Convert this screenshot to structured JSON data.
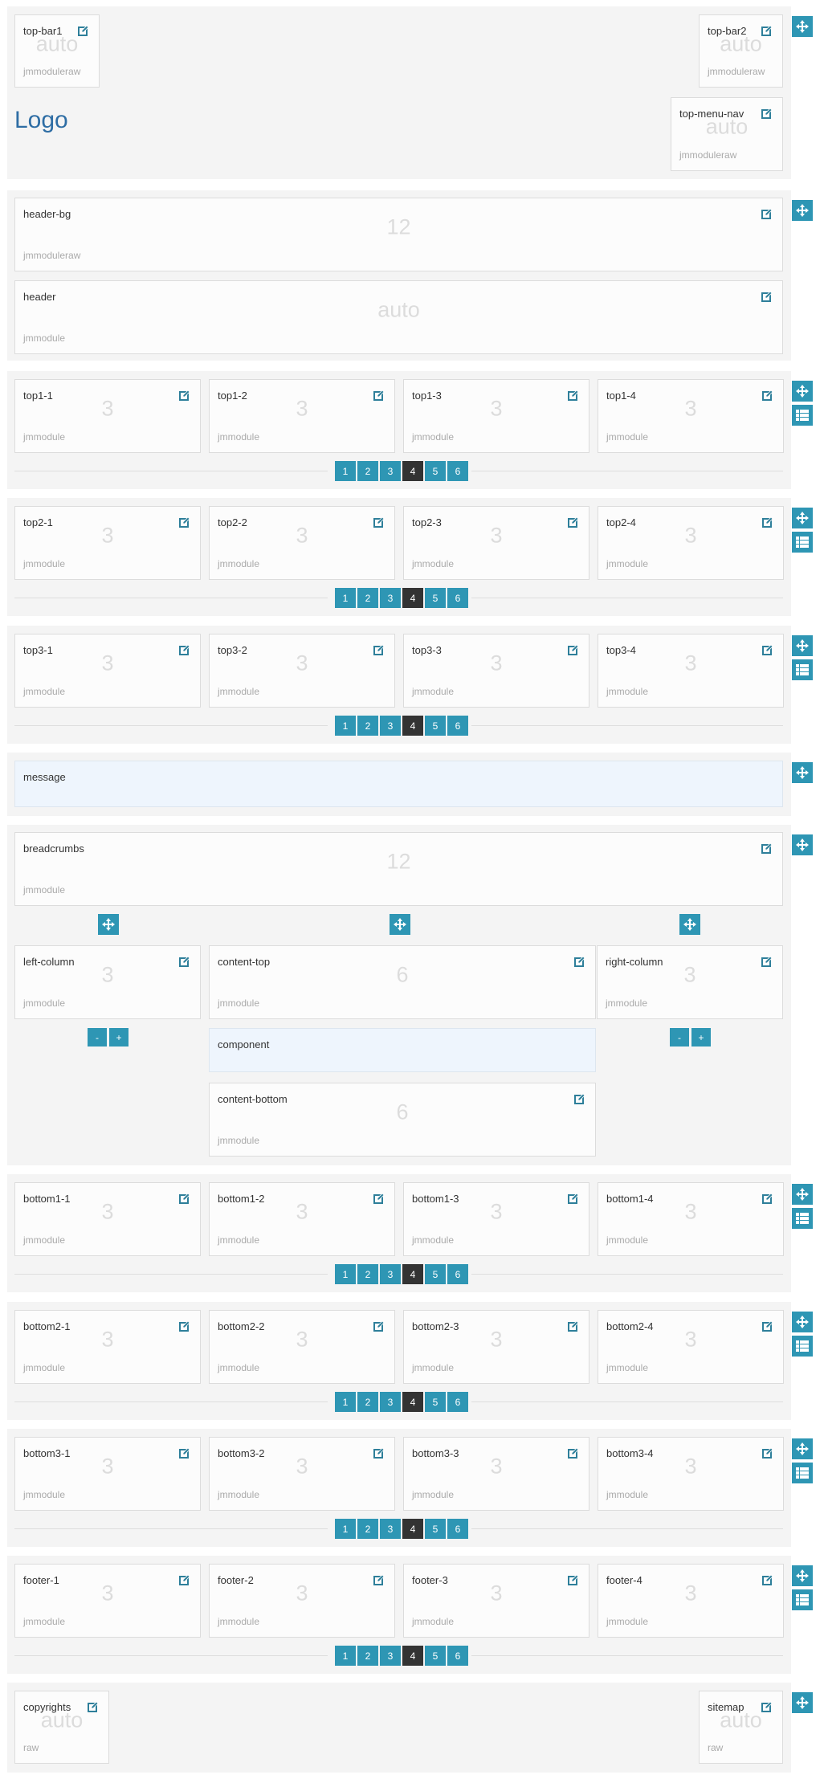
{
  "colors": {
    "accent": "#2e96b4",
    "active": "#333333",
    "section_bg": "#f4f4f4",
    "component_bg": "#eef5fd"
  },
  "logo": "Logo",
  "column_options": [
    "1",
    "2",
    "3",
    "4",
    "5",
    "6"
  ],
  "active_columns": "4",
  "resize": {
    "minus": "-",
    "plus": "+"
  },
  "sections": [
    {
      "id": "top",
      "blocks": [
        {
          "title": "top-bar1",
          "size": "auto",
          "type": "jmmoduleraw"
        },
        {
          "title": "top-bar2",
          "size": "auto",
          "type": "jmmoduleraw"
        },
        {
          "title": "top-menu-nav",
          "size": "auto",
          "type": "jmmoduleraw"
        }
      ]
    },
    {
      "id": "header",
      "blocks": [
        {
          "title": "header-bg",
          "size": "12",
          "type": "jmmoduleraw"
        },
        {
          "title": "header",
          "size": "auto",
          "type": "jmmodule"
        }
      ]
    },
    {
      "id": "top1",
      "blocks": [
        {
          "title": "top1-1",
          "size": "3",
          "type": "jmmodule"
        },
        {
          "title": "top1-2",
          "size": "3",
          "type": "jmmodule"
        },
        {
          "title": "top1-3",
          "size": "3",
          "type": "jmmodule"
        },
        {
          "title": "top1-4",
          "size": "3",
          "type": "jmmodule"
        }
      ]
    },
    {
      "id": "top2",
      "blocks": [
        {
          "title": "top2-1",
          "size": "3",
          "type": "jmmodule"
        },
        {
          "title": "top2-2",
          "size": "3",
          "type": "jmmodule"
        },
        {
          "title": "top2-3",
          "size": "3",
          "type": "jmmodule"
        },
        {
          "title": "top2-4",
          "size": "3",
          "type": "jmmodule"
        }
      ]
    },
    {
      "id": "top3",
      "blocks": [
        {
          "title": "top3-1",
          "size": "3",
          "type": "jmmodule"
        },
        {
          "title": "top3-2",
          "size": "3",
          "type": "jmmodule"
        },
        {
          "title": "top3-3",
          "size": "3",
          "type": "jmmodule"
        },
        {
          "title": "top3-4",
          "size": "3",
          "type": "jmmodule"
        }
      ]
    },
    {
      "id": "message",
      "blocks": [
        {
          "title": "message"
        }
      ]
    },
    {
      "id": "main",
      "blocks": [
        {
          "title": "breadcrumbs",
          "size": "12",
          "type": "jmmodule"
        },
        {
          "title": "left-column",
          "size": "3",
          "type": "jmmodule"
        },
        {
          "title": "content-top",
          "size": "6",
          "type": "jmmodule"
        },
        {
          "title": "right-column",
          "size": "3",
          "type": "jmmodule"
        },
        {
          "title": "component"
        },
        {
          "title": "content-bottom",
          "size": "6",
          "type": "jmmodule"
        }
      ]
    },
    {
      "id": "bottom1",
      "blocks": [
        {
          "title": "bottom1-1",
          "size": "3",
          "type": "jmmodule"
        },
        {
          "title": "bottom1-2",
          "size": "3",
          "type": "jmmodule"
        },
        {
          "title": "bottom1-3",
          "size": "3",
          "type": "jmmodule"
        },
        {
          "title": "bottom1-4",
          "size": "3",
          "type": "jmmodule"
        }
      ]
    },
    {
      "id": "bottom2",
      "blocks": [
        {
          "title": "bottom2-1",
          "size": "3",
          "type": "jmmodule"
        },
        {
          "title": "bottom2-2",
          "size": "3",
          "type": "jmmodule"
        },
        {
          "title": "bottom2-3",
          "size": "3",
          "type": "jmmodule"
        },
        {
          "title": "bottom2-4",
          "size": "3",
          "type": "jmmodule"
        }
      ]
    },
    {
      "id": "bottom3",
      "blocks": [
        {
          "title": "bottom3-1",
          "size": "3",
          "type": "jmmodule"
        },
        {
          "title": "bottom3-2",
          "size": "3",
          "type": "jmmodule"
        },
        {
          "title": "bottom3-3",
          "size": "3",
          "type": "jmmodule"
        },
        {
          "title": "bottom3-4",
          "size": "3",
          "type": "jmmodule"
        }
      ]
    },
    {
      "id": "footer",
      "blocks": [
        {
          "title": "footer-1",
          "size": "3",
          "type": "jmmodule"
        },
        {
          "title": "footer-2",
          "size": "3",
          "type": "jmmodule"
        },
        {
          "title": "footer-3",
          "size": "3",
          "type": "jmmodule"
        },
        {
          "title": "footer-4",
          "size": "3",
          "type": "jmmodule"
        }
      ]
    },
    {
      "id": "copyrights",
      "blocks": [
        {
          "title": "copyrights",
          "size": "auto",
          "type": "raw"
        },
        {
          "title": "sitemap",
          "size": "auto",
          "type": "raw"
        }
      ]
    }
  ]
}
